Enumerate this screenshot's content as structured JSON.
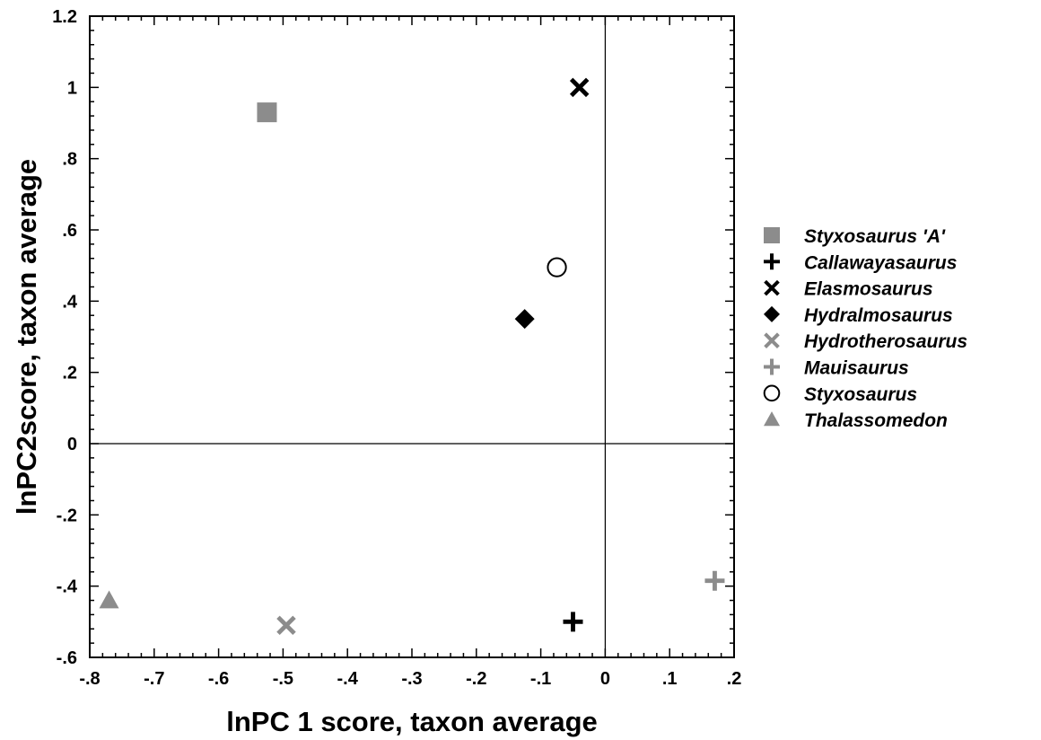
{
  "chart_data": {
    "type": "scatter",
    "title": "",
    "xlabel": "lnPC 1 score, taxon average",
    "ylabel": "lnPC2score, taxon average",
    "xlim": [
      -0.8,
      0.2
    ],
    "ylim": [
      -0.6,
      1.2
    ],
    "x_ticks": [
      -0.8,
      -0.7,
      -0.6,
      -0.5,
      -0.4,
      -0.3,
      -0.2,
      -0.1,
      0,
      0.1,
      0.2
    ],
    "x_tick_labels": [
      "-.8",
      "-.7",
      "-.6",
      "-.5",
      "-.4",
      "-.3",
      "-.2",
      "-.1",
      "0",
      ".1",
      ".2"
    ],
    "y_ticks": [
      -0.6,
      -0.4,
      -0.2,
      0,
      0.2,
      0.4,
      0.6,
      0.8,
      1,
      1.2
    ],
    "y_tick_labels": [
      "-.6",
      "-.4",
      "-.2",
      "0",
      ".2",
      ".4",
      ".6",
      ".8",
      "1",
      "1.2"
    ],
    "zero_lines": true,
    "grid": false,
    "legend_position": "right",
    "series": [
      {
        "name": "Styxosaurus 'A'",
        "marker": "square",
        "color": "#8c8c8c",
        "x": [
          -0.525
        ],
        "y": [
          0.93
        ]
      },
      {
        "name": "Callawayasaurus",
        "marker": "plus",
        "color": "#000000",
        "x": [
          -0.05
        ],
        "y": [
          -0.5
        ]
      },
      {
        "name": "Elasmosaurus",
        "marker": "x",
        "color": "#000000",
        "x": [
          -0.04
        ],
        "y": [
          1.0
        ]
      },
      {
        "name": "Hydralmosaurus",
        "marker": "diamond",
        "color": "#000000",
        "x": [
          -0.125
        ],
        "y": [
          0.35
        ]
      },
      {
        "name": "Hydrotherosaurus",
        "marker": "x",
        "color": "#8c8c8c",
        "x": [
          -0.495
        ],
        "y": [
          -0.51
        ]
      },
      {
        "name": "Mauisaurus",
        "marker": "plus",
        "color": "#8c8c8c",
        "x": [
          0.17
        ],
        "y": [
          -0.385
        ]
      },
      {
        "name": "Styxosaurus",
        "marker": "circle-open",
        "color": "#000000",
        "x": [
          -0.075
        ],
        "y": [
          0.495
        ]
      },
      {
        "name": "Thalassomedon",
        "marker": "triangle",
        "color": "#8c8c8c",
        "x": [
          -0.77
        ],
        "y": [
          -0.44
        ]
      }
    ]
  }
}
